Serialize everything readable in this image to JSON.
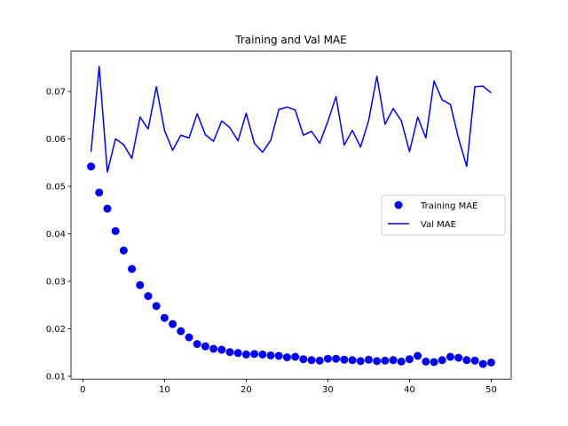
{
  "chart_data": {
    "type": "line",
    "title": "Training and Val MAE",
    "xlabel": "",
    "ylabel": "",
    "xlim": [
      -1.45,
      52.45
    ],
    "ylim": [
      0.0094,
      0.0785
    ],
    "xticks": [
      0,
      10,
      20,
      30,
      40,
      50
    ],
    "yticks": [
      0.01,
      0.02,
      0.03,
      0.04,
      0.05,
      0.06,
      0.07
    ],
    "legend_position": "center-right",
    "x": [
      1,
      2,
      3,
      4,
      5,
      6,
      7,
      8,
      9,
      10,
      11,
      12,
      13,
      14,
      15,
      16,
      17,
      18,
      19,
      20,
      21,
      22,
      23,
      24,
      25,
      26,
      27,
      28,
      29,
      30,
      31,
      32,
      33,
      34,
      35,
      36,
      37,
      38,
      39,
      40,
      41,
      42,
      43,
      44,
      45,
      46,
      47,
      48,
      49,
      50
    ],
    "series": [
      {
        "name": "Training MAE",
        "style": "markers",
        "color": "#0000ff",
        "values": [
          0.0542,
          0.0487,
          0.0453,
          0.0406,
          0.0365,
          0.0326,
          0.0292,
          0.0269,
          0.0248,
          0.0223,
          0.021,
          0.0195,
          0.0182,
          0.0168,
          0.0163,
          0.0158,
          0.0156,
          0.0151,
          0.0149,
          0.0146,
          0.0147,
          0.0146,
          0.0144,
          0.0143,
          0.014,
          0.0141,
          0.0136,
          0.0134,
          0.0133,
          0.0137,
          0.0137,
          0.0135,
          0.0134,
          0.0132,
          0.0135,
          0.0132,
          0.0133,
          0.0134,
          0.0131,
          0.0136,
          0.0143,
          0.0131,
          0.013,
          0.0134,
          0.0141,
          0.0139,
          0.0134,
          0.0133,
          0.0126,
          0.0129
        ]
      },
      {
        "name": "Val MAE",
        "style": "line",
        "color": "#0000ff",
        "values": [
          0.0573,
          0.0753,
          0.053,
          0.06,
          0.0588,
          0.0559,
          0.0646,
          0.0621,
          0.071,
          0.0618,
          0.0576,
          0.0608,
          0.0602,
          0.0653,
          0.0609,
          0.0595,
          0.0638,
          0.0624,
          0.0596,
          0.0654,
          0.0591,
          0.0572,
          0.0597,
          0.0662,
          0.0667,
          0.0661,
          0.0608,
          0.0616,
          0.0591,
          0.0637,
          0.0689,
          0.0587,
          0.0618,
          0.0583,
          0.0639,
          0.0732,
          0.0631,
          0.0664,
          0.0638,
          0.0573,
          0.0646,
          0.0602,
          0.0722,
          0.0682,
          0.0673,
          0.0601,
          0.0542,
          0.071,
          0.0711,
          0.0697
        ]
      }
    ]
  }
}
